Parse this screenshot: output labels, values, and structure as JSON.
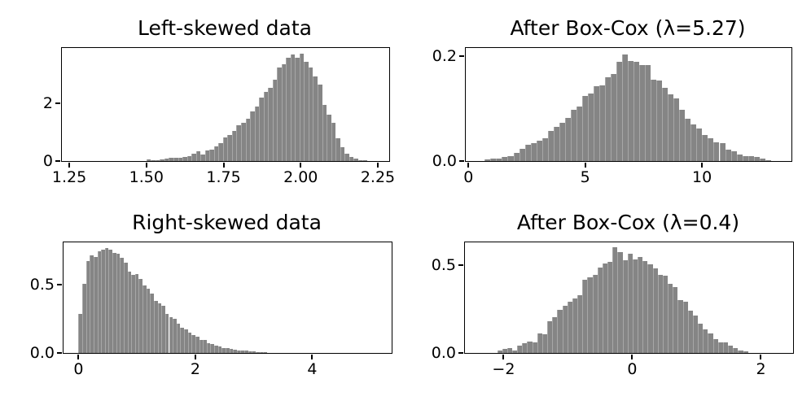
{
  "figure": {
    "background_color": "#ffffff",
    "bar_color": "#858585",
    "spine_color": "#000000",
    "grid": false,
    "legend": false
  },
  "chart_data": [
    {
      "type": "bar",
      "subtype": "histogram",
      "title": "Left-skewed data",
      "xlabel": "",
      "ylabel": "",
      "xlim": [
        1.226,
        2.287
      ],
      "ylim": [
        0,
        3.92
      ],
      "xtick_values": [
        1.25,
        1.5,
        1.75,
        2.0,
        2.25
      ],
      "xtick_labels": [
        "1.25",
        "1.50",
        "1.75",
        "2.00",
        "2.25"
      ],
      "ytick_values": [
        0,
        2
      ],
      "ytick_labels": [
        "0",
        "2"
      ],
      "bin_start": 1.5,
      "bin_width": 0.0146,
      "heights": [
        0.07,
        0.02,
        0.04,
        0.06,
        0.08,
        0.1,
        0.1,
        0.12,
        0.14,
        0.16,
        0.26,
        0.33,
        0.22,
        0.38,
        0.4,
        0.52,
        0.61,
        0.82,
        0.9,
        1.04,
        1.23,
        1.32,
        1.46,
        1.72,
        1.89,
        2.2,
        2.4,
        2.55,
        2.83,
        3.25,
        3.35,
        3.57,
        3.7,
        3.58,
        3.71,
        3.44,
        3.25,
        2.94,
        2.64,
        1.96,
        1.6,
        1.32,
        0.8,
        0.47,
        0.26,
        0.14,
        0.075,
        0.03,
        0.015
      ]
    },
    {
      "type": "bar",
      "subtype": "histogram",
      "title": "After Box-Cox (λ=5.27)",
      "xlabel": "",
      "ylabel": "",
      "xlim": [
        -0.115,
        13.83
      ],
      "ylim": [
        0,
        0.215
      ],
      "xtick_values": [
        0,
        5,
        10
      ],
      "xtick_labels": [
        "0",
        "5",
        "10"
      ],
      "ytick_values": [
        0.0,
        0.2
      ],
      "ytick_labels": [
        "0.0",
        "0.2"
      ],
      "bin_start": 0.7,
      "bin_width": 0.245,
      "heights": [
        0.003,
        0.005,
        0.004,
        0.008,
        0.01,
        0.016,
        0.023,
        0.031,
        0.034,
        0.039,
        0.044,
        0.057,
        0.065,
        0.073,
        0.082,
        0.098,
        0.103,
        0.124,
        0.128,
        0.142,
        0.144,
        0.159,
        0.166,
        0.188,
        0.202,
        0.19,
        0.188,
        0.183,
        0.183,
        0.155,
        0.153,
        0.14,
        0.127,
        0.119,
        0.098,
        0.08,
        0.07,
        0.062,
        0.049,
        0.043,
        0.036,
        0.034,
        0.021,
        0.019,
        0.013,
        0.01,
        0.009,
        0.007,
        0.004,
        0.002
      ]
    },
    {
      "type": "bar",
      "subtype": "histogram",
      "title": "Right-skewed data",
      "xlabel": "",
      "ylabel": "",
      "xlim": [
        -0.257,
        5.36
      ],
      "ylim": [
        0,
        0.805
      ],
      "xtick_values": [
        0,
        2,
        4
      ],
      "xtick_labels": [
        "0",
        "2",
        "4"
      ],
      "ytick_values": [
        0.0,
        0.5
      ],
      "ytick_labels": [
        "0.0",
        "0.5"
      ],
      "bin_start": 0.0,
      "bin_width": 0.0645,
      "heights": [
        0.286,
        0.506,
        0.669,
        0.712,
        0.698,
        0.738,
        0.752,
        0.764,
        0.752,
        0.728,
        0.724,
        0.694,
        0.659,
        0.593,
        0.569,
        0.575,
        0.54,
        0.49,
        0.47,
        0.43,
        0.377,
        0.361,
        0.341,
        0.282,
        0.262,
        0.246,
        0.212,
        0.183,
        0.173,
        0.149,
        0.133,
        0.117,
        0.097,
        0.093,
        0.073,
        0.063,
        0.054,
        0.05,
        0.038,
        0.038,
        0.03,
        0.024,
        0.02,
        0.018,
        0.015,
        0.012,
        0.01,
        0.008,
        0.006,
        0.005
      ]
    },
    {
      "type": "bar",
      "subtype": "histogram",
      "title": "After Box-Cox (λ=0.4)",
      "xlabel": "",
      "ylabel": "",
      "xlim": [
        -2.6,
        2.5
      ],
      "ylim": [
        0,
        0.63
      ],
      "xtick_values": [
        -2,
        0,
        2
      ],
      "xtick_labels": [
        "−2",
        "0",
        "2"
      ],
      "ytick_values": [
        0.0,
        0.5
      ],
      "ytick_labels": [
        "0.0",
        "0.5"
      ],
      "bin_start": -2.1,
      "bin_width": 0.078,
      "heights": [
        0.012,
        0.023,
        0.028,
        0.015,
        0.043,
        0.056,
        0.067,
        0.062,
        0.113,
        0.105,
        0.183,
        0.206,
        0.245,
        0.268,
        0.291,
        0.31,
        0.33,
        0.415,
        0.43,
        0.446,
        0.485,
        0.508,
        0.52,
        0.6,
        0.573,
        0.526,
        0.567,
        0.531,
        0.546,
        0.523,
        0.503,
        0.48,
        0.446,
        0.441,
        0.392,
        0.373,
        0.299,
        0.294,
        0.242,
        0.214,
        0.167,
        0.133,
        0.113,
        0.077,
        0.062,
        0.059,
        0.04,
        0.028,
        0.015,
        0.009
      ]
    }
  ]
}
